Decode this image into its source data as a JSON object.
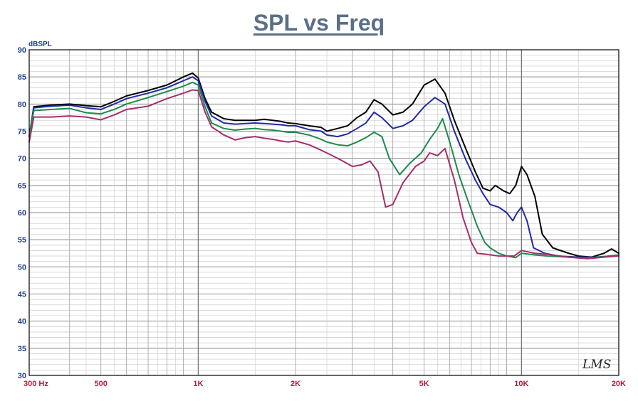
{
  "chart_data": {
    "type": "line",
    "title": "SPL vs Freq",
    "ylabel": "dBSPL",
    "xlabel": "",
    "xscale": "log",
    "xlim": [
      300,
      20000
    ],
    "ylim": [
      30,
      90
    ],
    "grid": true,
    "logo": "LMS",
    "y_ticks": [
      30,
      35,
      40,
      45,
      50,
      55,
      60,
      65,
      70,
      75,
      80,
      85,
      90
    ],
    "x_ticks": [
      {
        "value": 300,
        "label": "300  Hz"
      },
      {
        "value": 500,
        "label": "500"
      },
      {
        "value": 1000,
        "label": "1K"
      },
      {
        "value": 2000,
        "label": "2K"
      },
      {
        "value": 5000,
        "label": "5K"
      },
      {
        "value": 10000,
        "label": "10K"
      },
      {
        "value": 20000,
        "label": "20K"
      }
    ],
    "series": [
      {
        "color": "#000000",
        "points": [
          [
            300,
            74
          ],
          [
            310,
            79.5
          ],
          [
            350,
            79.8
          ],
          [
            400,
            80
          ],
          [
            450,
            79.7
          ],
          [
            500,
            79.5
          ],
          [
            550,
            80.5
          ],
          [
            600,
            81.5
          ],
          [
            700,
            82.5
          ],
          [
            800,
            83.5
          ],
          [
            900,
            85
          ],
          [
            960,
            85.7
          ],
          [
            1000,
            84.8
          ],
          [
            1050,
            81
          ],
          [
            1100,
            78.5
          ],
          [
            1200,
            77.3
          ],
          [
            1300,
            77
          ],
          [
            1400,
            77
          ],
          [
            1500,
            77
          ],
          [
            1600,
            77.2
          ],
          [
            1700,
            77
          ],
          [
            1800,
            76.8
          ],
          [
            1900,
            76.5
          ],
          [
            2000,
            76.4
          ],
          [
            2200,
            76
          ],
          [
            2400,
            75.7
          ],
          [
            2500,
            75
          ],
          [
            2700,
            75.5
          ],
          [
            2900,
            76
          ],
          [
            3100,
            77.5
          ],
          [
            3300,
            78.5
          ],
          [
            3500,
            80.8
          ],
          [
            3700,
            80
          ],
          [
            4000,
            78
          ],
          [
            4300,
            78.5
          ],
          [
            4600,
            80
          ],
          [
            5000,
            83.5
          ],
          [
            5400,
            84.6
          ],
          [
            5800,
            82
          ],
          [
            6200,
            77
          ],
          [
            6700,
            72
          ],
          [
            7200,
            67.5
          ],
          [
            7600,
            64.5
          ],
          [
            8000,
            64
          ],
          [
            8300,
            65
          ],
          [
            8800,
            64
          ],
          [
            9200,
            63.5
          ],
          [
            9600,
            65
          ],
          [
            10000,
            68.5
          ],
          [
            10400,
            67
          ],
          [
            11000,
            63
          ],
          [
            11600,
            56
          ],
          [
            12500,
            53.5
          ],
          [
            14000,
            52.5
          ],
          [
            15000,
            52
          ],
          [
            16500,
            51.8
          ],
          [
            18000,
            52.5
          ],
          [
            19000,
            53.3
          ],
          [
            20000,
            52.5
          ]
        ]
      },
      {
        "color": "#1e2aa8",
        "points": [
          [
            300,
            74
          ],
          [
            310,
            79.3
          ],
          [
            350,
            79.6
          ],
          [
            400,
            79.8
          ],
          [
            450,
            79.3
          ],
          [
            500,
            79
          ],
          [
            550,
            80
          ],
          [
            600,
            81
          ],
          [
            700,
            82
          ],
          [
            800,
            83
          ],
          [
            900,
            84.3
          ],
          [
            960,
            85
          ],
          [
            1000,
            84.3
          ],
          [
            1050,
            80.5
          ],
          [
            1100,
            77.8
          ],
          [
            1200,
            76.5
          ],
          [
            1300,
            76.3
          ],
          [
            1400,
            76.4
          ],
          [
            1500,
            76.5
          ],
          [
            1600,
            76.4
          ],
          [
            1700,
            76.3
          ],
          [
            1800,
            76.2
          ],
          [
            1900,
            76
          ],
          [
            2000,
            76
          ],
          [
            2200,
            75.3
          ],
          [
            2400,
            75
          ],
          [
            2500,
            74.3
          ],
          [
            2700,
            74
          ],
          [
            2900,
            74.5
          ],
          [
            3100,
            75.5
          ],
          [
            3300,
            76.5
          ],
          [
            3500,
            78.5
          ],
          [
            3700,
            77.5
          ],
          [
            4000,
            75.5
          ],
          [
            4300,
            76
          ],
          [
            4600,
            77
          ],
          [
            5000,
            79.5
          ],
          [
            5400,
            81.2
          ],
          [
            5800,
            80
          ],
          [
            6200,
            75
          ],
          [
            6700,
            70
          ],
          [
            7200,
            66
          ],
          [
            7600,
            63.5
          ],
          [
            8000,
            61.5
          ],
          [
            8500,
            61
          ],
          [
            9000,
            60
          ],
          [
            9400,
            58.5
          ],
          [
            9700,
            60
          ],
          [
            10000,
            61
          ],
          [
            10400,
            58.5
          ],
          [
            10900,
            53.5
          ],
          [
            11800,
            52.5
          ],
          [
            13000,
            52
          ],
          [
            15000,
            51.8
          ],
          [
            17000,
            51.8
          ],
          [
            20000,
            52.1
          ]
        ]
      },
      {
        "color": "#1e8a4e",
        "points": [
          [
            300,
            74
          ],
          [
            310,
            78.8
          ],
          [
            350,
            79
          ],
          [
            400,
            79.2
          ],
          [
            450,
            78.4
          ],
          [
            500,
            78.2
          ],
          [
            550,
            79
          ],
          [
            600,
            80
          ],
          [
            700,
            81.2
          ],
          [
            800,
            82.3
          ],
          [
            900,
            83.3
          ],
          [
            960,
            84
          ],
          [
            1000,
            83.5
          ],
          [
            1050,
            79.5
          ],
          [
            1100,
            76.5
          ],
          [
            1200,
            75.5
          ],
          [
            1300,
            75.2
          ],
          [
            1400,
            75.4
          ],
          [
            1500,
            75.5
          ],
          [
            1600,
            75.3
          ],
          [
            1700,
            75.2
          ],
          [
            1800,
            75
          ],
          [
            1900,
            74.8
          ],
          [
            2000,
            74.8
          ],
          [
            2200,
            74.3
          ],
          [
            2400,
            73.5
          ],
          [
            2500,
            73
          ],
          [
            2700,
            72.5
          ],
          [
            2900,
            72.3
          ],
          [
            3100,
            73
          ],
          [
            3300,
            73.8
          ],
          [
            3500,
            74.8
          ],
          [
            3700,
            74
          ],
          [
            3900,
            70
          ],
          [
            4200,
            67
          ],
          [
            4500,
            69
          ],
          [
            4900,
            71
          ],
          [
            5200,
            73.5
          ],
          [
            5500,
            75.5
          ],
          [
            5700,
            77.3
          ],
          [
            6000,
            73
          ],
          [
            6400,
            67
          ],
          [
            6800,
            62.5
          ],
          [
            7300,
            57.5
          ],
          [
            7700,
            54.5
          ],
          [
            8000,
            53.5
          ],
          [
            8500,
            52.5
          ],
          [
            9000,
            52
          ],
          [
            9600,
            51.7
          ],
          [
            10000,
            52.5
          ],
          [
            11000,
            52.2
          ],
          [
            12000,
            52
          ],
          [
            14000,
            51.8
          ],
          [
            16000,
            51.6
          ],
          [
            18000,
            51.9
          ],
          [
            20000,
            52.2
          ]
        ]
      },
      {
        "color": "#a3306a",
        "points": [
          [
            300,
            73
          ],
          [
            310,
            77.6
          ],
          [
            350,
            77.6
          ],
          [
            400,
            77.8
          ],
          [
            450,
            77.6
          ],
          [
            500,
            77.1
          ],
          [
            550,
            78
          ],
          [
            600,
            79
          ],
          [
            700,
            79.6
          ],
          [
            800,
            81
          ],
          [
            900,
            82
          ],
          [
            960,
            82.6
          ],
          [
            1000,
            82.5
          ],
          [
            1050,
            78.5
          ],
          [
            1100,
            75.8
          ],
          [
            1200,
            74.3
          ],
          [
            1300,
            73.4
          ],
          [
            1400,
            73.8
          ],
          [
            1500,
            74
          ],
          [
            1600,
            73.7
          ],
          [
            1700,
            73.5
          ],
          [
            1800,
            73.2
          ],
          [
            1900,
            73
          ],
          [
            2000,
            73.2
          ],
          [
            2200,
            72.5
          ],
          [
            2400,
            71.5
          ],
          [
            2600,
            70.5
          ],
          [
            2800,
            69.5
          ],
          [
            3000,
            68.5
          ],
          [
            3200,
            68.8
          ],
          [
            3400,
            69.5
          ],
          [
            3600,
            67.5
          ],
          [
            3800,
            61
          ],
          [
            4000,
            61.5
          ],
          [
            4300,
            65.5
          ],
          [
            4700,
            68.5
          ],
          [
            5000,
            69.5
          ],
          [
            5200,
            71
          ],
          [
            5500,
            70.5
          ],
          [
            5800,
            71.8
          ],
          [
            6200,
            66
          ],
          [
            6600,
            59
          ],
          [
            7000,
            54.5
          ],
          [
            7300,
            52.5
          ],
          [
            7800,
            52.3
          ],
          [
            8500,
            52
          ],
          [
            9500,
            52
          ],
          [
            10000,
            53
          ],
          [
            11000,
            52.5
          ],
          [
            12000,
            52.3
          ],
          [
            14000,
            51.8
          ],
          [
            16000,
            51.5
          ],
          [
            18000,
            51.8
          ],
          [
            20000,
            52
          ]
        ]
      }
    ]
  }
}
